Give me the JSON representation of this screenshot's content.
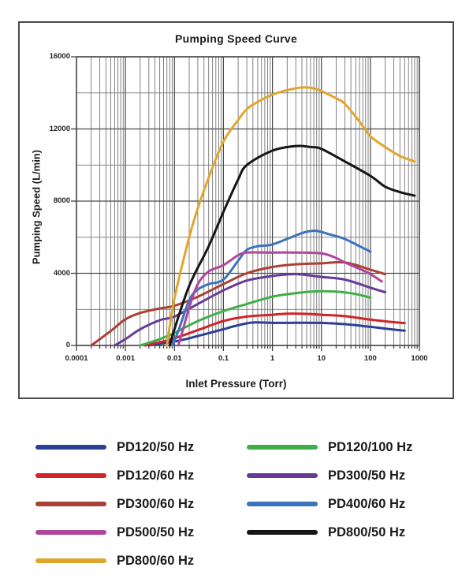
{
  "chart_data": {
    "type": "line",
    "title": "Pumping Speed Curve",
    "xlabel": "Inlet Pressure (Torr)",
    "ylabel": "Pumping Speed (L/min)",
    "x_scale": "log",
    "xlim": [
      0.0001,
      1000
    ],
    "ylim": [
      0,
      16000
    ],
    "x_tick_labels": [
      "0.0001",
      "0.001",
      "0.01",
      "0.1",
      "1",
      "10",
      "100",
      "1000"
    ],
    "y_tick_values": [
      0,
      4000,
      8000,
      12000,
      16000
    ],
    "y_minor_interval": 2000,
    "grid": true,
    "legend_position": "below-chart",
    "series": [
      {
        "name": "PD120/50 Hz",
        "color": "#2b3f94",
        "points": [
          [
            0.003,
            0
          ],
          [
            0.005,
            100
          ],
          [
            0.01,
            220
          ],
          [
            0.02,
            400
          ],
          [
            0.05,
            680
          ],
          [
            0.1,
            900
          ],
          [
            0.2,
            1120
          ],
          [
            0.4,
            1270
          ],
          [
            1,
            1250
          ],
          [
            3,
            1260
          ],
          [
            10,
            1250
          ],
          [
            30,
            1180
          ],
          [
            100,
            1030
          ],
          [
            300,
            880
          ],
          [
            500,
            820
          ]
        ]
      },
      {
        "name": "PD120/60 Hz",
        "color": "#cf2428",
        "points": [
          [
            0.0025,
            0
          ],
          [
            0.005,
            180
          ],
          [
            0.01,
            400
          ],
          [
            0.03,
            850
          ],
          [
            0.1,
            1350
          ],
          [
            0.3,
            1600
          ],
          [
            1,
            1700
          ],
          [
            2,
            1760
          ],
          [
            5,
            1750
          ],
          [
            10,
            1700
          ],
          [
            30,
            1620
          ],
          [
            100,
            1430
          ],
          [
            300,
            1290
          ],
          [
            500,
            1240
          ]
        ]
      },
      {
        "name": "PD120/100 Hz",
        "color": "#3fae49",
        "points": [
          [
            0.002,
            0
          ],
          [
            0.005,
            350
          ],
          [
            0.01,
            700
          ],
          [
            0.03,
            1350
          ],
          [
            0.1,
            1900
          ],
          [
            0.3,
            2300
          ],
          [
            1,
            2700
          ],
          [
            3,
            2900
          ],
          [
            8,
            3000
          ],
          [
            20,
            2980
          ],
          [
            50,
            2850
          ],
          [
            100,
            2650
          ]
        ]
      },
      {
        "name": "PD300/50 Hz",
        "color": "#683a97",
        "points": [
          [
            0.0006,
            0
          ],
          [
            0.001,
            350
          ],
          [
            0.002,
            900
          ],
          [
            0.005,
            1400
          ],
          [
            0.01,
            1600
          ],
          [
            0.03,
            2300
          ],
          [
            0.1,
            3050
          ],
          [
            0.3,
            3600
          ],
          [
            1,
            3850
          ],
          [
            3,
            3950
          ],
          [
            10,
            3800
          ],
          [
            30,
            3650
          ],
          [
            100,
            3200
          ],
          [
            200,
            2950
          ]
        ]
      },
      {
        "name": "PD300/60 Hz",
        "color": "#a94136",
        "points": [
          [
            0.0002,
            0
          ],
          [
            0.0005,
            800
          ],
          [
            0.001,
            1450
          ],
          [
            0.002,
            1800
          ],
          [
            0.005,
            2050
          ],
          [
            0.01,
            2200
          ],
          [
            0.03,
            2700
          ],
          [
            0.1,
            3400
          ],
          [
            0.3,
            4000
          ],
          [
            1,
            4350
          ],
          [
            3,
            4500
          ],
          [
            10,
            4550
          ],
          [
            30,
            4600
          ],
          [
            100,
            4200
          ],
          [
            200,
            3950
          ]
        ]
      },
      {
        "name": "PD400/60 Hz",
        "color": "#3b73bc",
        "points": [
          [
            0.009,
            0
          ],
          [
            0.012,
            800
          ],
          [
            0.02,
            2500
          ],
          [
            0.03,
            3100
          ],
          [
            0.05,
            3400
          ],
          [
            0.1,
            3650
          ],
          [
            0.2,
            4700
          ],
          [
            0.3,
            5300
          ],
          [
            0.5,
            5500
          ],
          [
            1,
            5600
          ],
          [
            3,
            6100
          ],
          [
            5,
            6300
          ],
          [
            8,
            6350
          ],
          [
            15,
            6150
          ],
          [
            30,
            5900
          ],
          [
            60,
            5500
          ],
          [
            100,
            5200
          ]
        ]
      },
      {
        "name": "PD500/50 Hz",
        "color": "#b0459c",
        "points": [
          [
            0.012,
            0
          ],
          [
            0.015,
            900
          ],
          [
            0.02,
            2100
          ],
          [
            0.03,
            3400
          ],
          [
            0.05,
            4100
          ],
          [
            0.1,
            4450
          ],
          [
            0.2,
            5000
          ],
          [
            0.3,
            5150
          ],
          [
            1,
            5150
          ],
          [
            3,
            5150
          ],
          [
            10,
            5100
          ],
          [
            20,
            4850
          ],
          [
            30,
            4600
          ],
          [
            60,
            4250
          ],
          [
            100,
            3950
          ],
          [
            170,
            3550
          ]
        ]
      },
      {
        "name": "PD800/50 Hz",
        "color": "#161616",
        "points": [
          [
            0.008,
            0
          ],
          [
            0.01,
            900
          ],
          [
            0.02,
            3300
          ],
          [
            0.05,
            5500
          ],
          [
            0.1,
            7400
          ],
          [
            0.2,
            9200
          ],
          [
            0.3,
            10000
          ],
          [
            1,
            10800
          ],
          [
            3,
            11050
          ],
          [
            6,
            11000
          ],
          [
            10,
            10900
          ],
          [
            30,
            10200
          ],
          [
            100,
            9400
          ],
          [
            200,
            8800
          ],
          [
            400,
            8500
          ],
          [
            800,
            8300
          ]
        ]
      },
      {
        "name": "PD800/60 Hz",
        "color": "#e0a62c",
        "points": [
          [
            0.007,
            0
          ],
          [
            0.01,
            2600
          ],
          [
            0.02,
            6000
          ],
          [
            0.03,
            7600
          ],
          [
            0.05,
            9300
          ],
          [
            0.1,
            11300
          ],
          [
            0.2,
            12500
          ],
          [
            0.3,
            13100
          ],
          [
            0.5,
            13500
          ],
          [
            1,
            13900
          ],
          [
            2,
            14150
          ],
          [
            4,
            14300
          ],
          [
            7,
            14250
          ],
          [
            10,
            14100
          ],
          [
            20,
            13700
          ],
          [
            30,
            13400
          ],
          [
            60,
            12400
          ],
          [
            100,
            11600
          ],
          [
            200,
            11000
          ],
          [
            400,
            10500
          ],
          [
            800,
            10200
          ]
        ]
      }
    ]
  },
  "legend": {
    "left_column": [
      "PD120/50 Hz",
      "PD120/60 Hz",
      "PD300/60 Hz",
      "PD500/50 Hz",
      "PD800/60 Hz"
    ],
    "right_column": [
      "PD120/100 Hz",
      "PD300/50 Hz",
      "PD400/60 Hz",
      "PD800/50 Hz"
    ]
  }
}
